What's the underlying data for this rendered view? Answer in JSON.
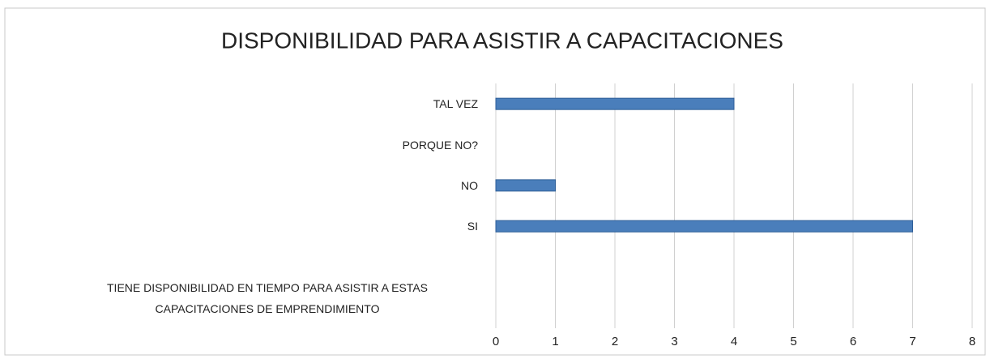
{
  "chart_data": {
    "type": "hbar",
    "title": "DISPONIBILIDAD PARA ASISTIR A CAPACITACIONES",
    "categories": [
      "TAL VEZ",
      "PORQUE NO?",
      "NO",
      "SI",
      null,
      "TIENE DISPONIBILIDAD EN TIEMPO PARA ASISTIR A ESTAS CAPACITACIONES DE EMPRENDIMIENTO"
    ],
    "values": [
      4,
      0,
      1,
      7,
      null,
      null
    ],
    "color": "#4a7ebb",
    "xlim": [
      0,
      8
    ],
    "xticks": [
      0,
      1,
      2,
      3,
      4,
      5,
      6,
      7,
      8
    ],
    "grid": true
  }
}
